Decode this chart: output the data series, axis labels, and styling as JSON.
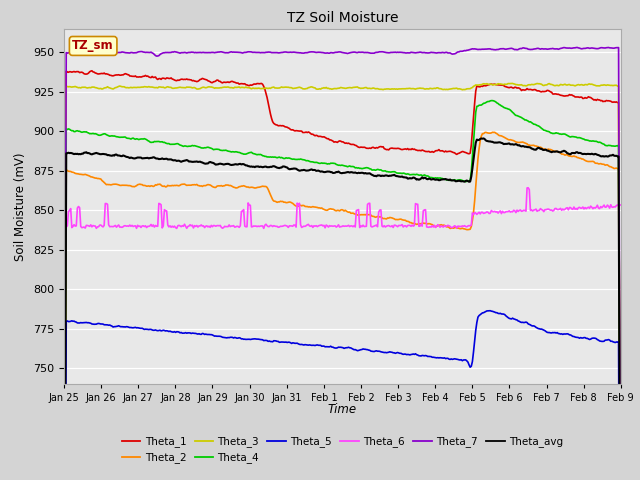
{
  "title": "TZ Soil Moisture",
  "xlabel": "Time",
  "ylabel": "Soil Moisture (mV)",
  "ylim": [
    740,
    965
  ],
  "fig_bg": "#d4d4d4",
  "plot_bg": "#e8e8e8",
  "legend_label": "TZ_sm",
  "series_colors": {
    "Theta_1": "#dd0000",
    "Theta_2": "#ff8800",
    "Theta_3": "#cccc00",
    "Theta_4": "#00cc00",
    "Theta_5": "#0000dd",
    "Theta_6": "#ff44ff",
    "Theta_7": "#8800cc",
    "Theta_avg": "#000000"
  },
  "xtick_labels": [
    "Jan 25",
    "Jan 26",
    "Jan 27",
    "Jan 28",
    "Jan 29",
    "Jan 30",
    "Jan 31",
    "Feb 1",
    "Feb 2",
    "Feb 3",
    "Feb 4",
    "Feb 5",
    "Feb 6",
    "Feb 7",
    "Feb 8",
    "Feb 9"
  ]
}
